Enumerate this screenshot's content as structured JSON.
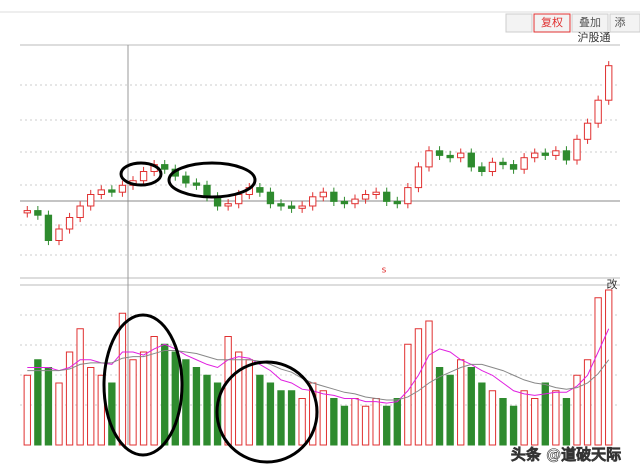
{
  "chart_data": {
    "type": "candlestick",
    "tabs": [
      "复权",
      "叠加",
      "添"
    ],
    "badge": "沪股通",
    "volume_label": "改",
    "marker": "s",
    "watermark": "头条 @道破天际",
    "ylim": [
      0,
      100
    ],
    "volume_ylim": [
      0,
      100
    ],
    "up_color": "#e03030",
    "down_color": "#2e8b2e",
    "open": [
      27,
      28,
      26,
      15,
      20,
      25,
      30,
      35,
      37,
      36,
      39,
      41,
      45,
      48,
      46,
      43,
      40,
      39,
      34,
      30,
      31,
      35,
      38,
      36,
      31,
      30,
      29,
      30,
      34,
      36,
      32,
      31,
      33,
      35,
      36,
      32,
      31,
      38,
      47,
      54,
      52,
      51,
      53,
      47,
      45,
      49,
      48,
      46,
      51,
      53,
      52,
      54,
      50,
      59,
      66,
      76
    ],
    "close": [
      28,
      26,
      15,
      20,
      25,
      30,
      35,
      37,
      36,
      39,
      41,
      45,
      48,
      46,
      43,
      40,
      39,
      34,
      30,
      31,
      35,
      38,
      36,
      31,
      30,
      29,
      30,
      34,
      36,
      32,
      31,
      33,
      35,
      36,
      32,
      31,
      38,
      47,
      54,
      52,
      51,
      53,
      47,
      45,
      49,
      48,
      46,
      51,
      53,
      52,
      54,
      50,
      59,
      66,
      76,
      91
    ],
    "high": [
      30,
      30,
      28,
      22,
      27,
      32,
      37,
      39,
      39,
      41,
      43,
      47,
      50,
      50,
      48,
      45,
      42,
      41,
      36,
      33,
      37,
      40,
      40,
      38,
      33,
      32,
      32,
      36,
      38,
      38,
      34,
      35,
      37,
      38,
      38,
      34,
      40,
      49,
      56,
      56,
      54,
      55,
      55,
      49,
      51,
      51,
      50,
      53,
      55,
      55,
      56,
      56,
      61,
      68,
      78,
      93
    ],
    "low": [
      25,
      24,
      13,
      13,
      18,
      23,
      28,
      33,
      34,
      34,
      37,
      39,
      43,
      44,
      41,
      38,
      37,
      32,
      28,
      28,
      29,
      33,
      34,
      29,
      28,
      27,
      27,
      28,
      32,
      30,
      29,
      29,
      31,
      33,
      30,
      29,
      29,
      36,
      45,
      50,
      49,
      49,
      45,
      43,
      43,
      46,
      44,
      44,
      49,
      50,
      50,
      48,
      48,
      57,
      64,
      74
    ],
    "volume": [
      45,
      55,
      50,
      40,
      60,
      75,
      50,
      45,
      40,
      85,
      55,
      60,
      70,
      65,
      60,
      55,
      50,
      45,
      40,
      70,
      60,
      55,
      45,
      40,
      35,
      35,
      30,
      40,
      35,
      30,
      25,
      30,
      25,
      30,
      25,
      30,
      65,
      75,
      80,
      50,
      45,
      55,
      50,
      40,
      35,
      30,
      25,
      35,
      30,
      40,
      35,
      30,
      45,
      55,
      95,
      100
    ],
    "volume_ma": [
      {
        "color": "#e020e0",
        "values": [
          50,
          50,
          50,
          48,
          50,
          55,
          55,
          53,
          52,
          60,
          60,
          58,
          62,
          65,
          62,
          58,
          55,
          52,
          50,
          55,
          57,
          56,
          52,
          48,
          42,
          40,
          36,
          35,
          33,
          32,
          30,
          30,
          28,
          28,
          27,
          28,
          35,
          45,
          58,
          62,
          60,
          55,
          52,
          48,
          45,
          40,
          35,
          33,
          32,
          33,
          34,
          34,
          38,
          45,
          60,
          75
        ]
      },
      {
        "color": "#888888",
        "values": [
          48,
          48,
          48,
          48,
          49,
          52,
          53,
          53,
          53,
          56,
          57,
          57,
          59,
          61,
          61,
          60,
          59,
          57,
          55,
          55,
          55,
          55,
          54,
          52,
          49,
          47,
          43,
          40,
          38,
          36,
          34,
          33,
          31,
          30,
          29,
          29,
          31,
          35,
          40,
          44,
          47,
          50,
          52,
          52,
          50,
          48,
          45,
          42,
          40,
          39,
          37,
          36,
          37,
          40,
          46,
          55
        ]
      }
    ]
  }
}
